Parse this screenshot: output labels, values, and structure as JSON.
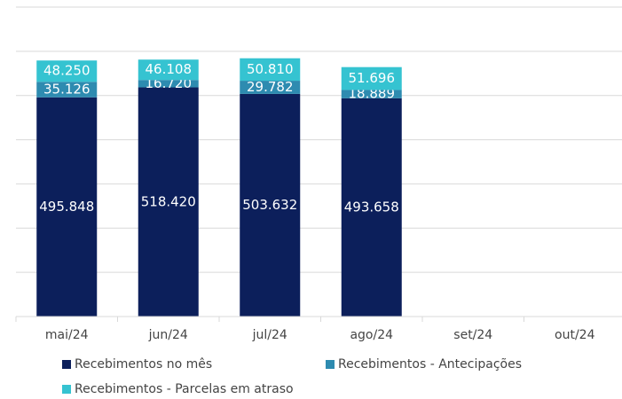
{
  "chart_data": {
    "type": "bar",
    "stacked": true,
    "categories": [
      "mai/24",
      "jun/24",
      "jul/24",
      "ago/24",
      "set/24",
      "out/24"
    ],
    "series": [
      {
        "name": "Recebimentos no mês",
        "color": "#0c1f5b",
        "values": [
          495848,
          518420,
          503632,
          493658,
          null,
          null
        ],
        "value_labels": [
          "495.848",
          "518.420",
          "503.632",
          "493.658",
          null,
          null
        ]
      },
      {
        "name": "Recebimentos - Antecipações",
        "color": "#2e8bb0",
        "values": [
          35126,
          16720,
          29782,
          18889,
          null,
          null
        ],
        "value_labels": [
          "35.126",
          "16.720",
          "29.782",
          "18.889",
          null,
          null
        ]
      },
      {
        "name": "Recebimentos - Parcelas em atraso",
        "color": "#35c3d1",
        "values": [
          48250,
          46108,
          50810,
          51696,
          null,
          null
        ],
        "value_labels": [
          "48.250",
          "46.108",
          "50.810",
          "51.696",
          null,
          null
        ]
      }
    ],
    "ylim": [
      0,
      700000
    ],
    "yticks": [
      0,
      100000,
      200000,
      300000,
      400000,
      500000,
      600000,
      700000
    ],
    "grid": true,
    "legend": "bottom"
  }
}
